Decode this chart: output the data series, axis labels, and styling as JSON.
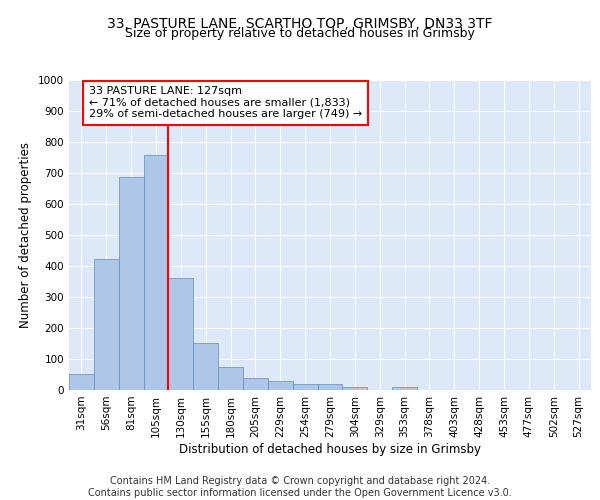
{
  "title_line1": "33, PASTURE LANE, SCARTHO TOP, GRIMSBY, DN33 3TF",
  "title_line2": "Size of property relative to detached houses in Grimsby",
  "xlabel": "Distribution of detached houses by size in Grimsby",
  "ylabel": "Number of detached properties",
  "bar_values": [
    52,
    422,
    686,
    757,
    362,
    153,
    75,
    40,
    28,
    18,
    18,
    10,
    0,
    10,
    0,
    0,
    0,
    0,
    0,
    0,
    0
  ],
  "bar_labels": [
    "31sqm",
    "56sqm",
    "81sqm",
    "105sqm",
    "130sqm",
    "155sqm",
    "180sqm",
    "205sqm",
    "229sqm",
    "254sqm",
    "279sqm",
    "304sqm",
    "329sqm",
    "353sqm",
    "378sqm",
    "403sqm",
    "428sqm",
    "453sqm",
    "477sqm",
    "502sqm",
    "527sqm"
  ],
  "bar_color": "#aec6e8",
  "bar_edge_color": "#5a8fc0",
  "marker_line_color": "red",
  "annotation_text": "33 PASTURE LANE: 127sqm\n← 71% of detached houses are smaller (1,833)\n29% of semi-detached houses are larger (749) →",
  "annotation_box_color": "white",
  "annotation_box_edge_color": "red",
  "ylim": [
    0,
    1000
  ],
  "yticks": [
    0,
    100,
    200,
    300,
    400,
    500,
    600,
    700,
    800,
    900,
    1000
  ],
  "footer_text": "Contains HM Land Registry data © Crown copyright and database right 2024.\nContains public sector information licensed under the Open Government Licence v3.0.",
  "background_color": "#dde8f8",
  "grid_color": "#ffffff",
  "title_fontsize": 10,
  "subtitle_fontsize": 9,
  "axis_label_fontsize": 8.5,
  "tick_fontsize": 7.5,
  "annotation_fontsize": 8,
  "footer_fontsize": 7
}
